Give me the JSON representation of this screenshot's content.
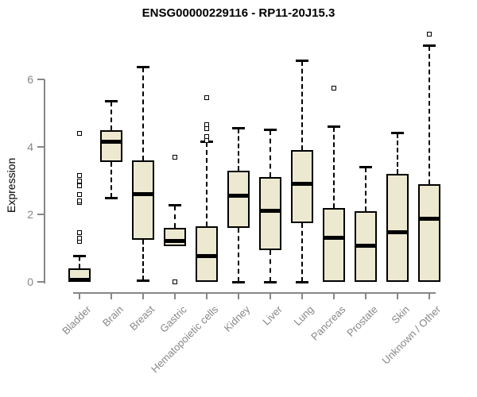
{
  "chart_data": {
    "type": "boxplot",
    "title": "ENSG00000229116 - RP11-20J15.3",
    "ylabel": "Expression",
    "ylim": [
      0,
      7.6
    ],
    "yticks": [
      0,
      2,
      4,
      6
    ],
    "grid": false,
    "legend": null,
    "categories": [
      "Bladder",
      "Brain",
      "Breast",
      "Gastric",
      "Hematopoietic cells",
      "Kidney",
      "Liver",
      "Lung",
      "Pancreas",
      "Prostate",
      "Skin",
      "Unknown / Other"
    ],
    "series": [
      {
        "name": "Bladder",
        "whisker_low": 0,
        "q1": 0,
        "median": 0.05,
        "q3": 0.4,
        "whisker_high": 0.75,
        "outliers": [
          1.2,
          1.3,
          1.45,
          2.35,
          2.4,
          2.6,
          2.85,
          3.0,
          3.15,
          4.4
        ]
      },
      {
        "name": "Brain",
        "whisker_low": 2.5,
        "q1": 3.55,
        "median": 4.15,
        "q3": 4.5,
        "whisker_high": 5.35,
        "outliers": []
      },
      {
        "name": "Breast",
        "whisker_low": 0.05,
        "q1": 1.25,
        "median": 2.6,
        "q3": 3.6,
        "whisker_high": 6.35,
        "outliers": []
      },
      {
        "name": "Gastric",
        "whisker_low": 1.05,
        "q1": 1.05,
        "median": 1.2,
        "q3": 1.6,
        "whisker_high": 2.25,
        "outliers": [
          0.0,
          3.7
        ]
      },
      {
        "name": "Hematopoietic cells",
        "whisker_low": 0,
        "q1": 0,
        "median": 0.75,
        "q3": 1.65,
        "whisker_high": 4.15,
        "outliers": [
          4.2,
          4.3,
          4.55,
          4.65,
          5.45
        ]
      },
      {
        "name": "Kidney",
        "whisker_low": 0,
        "q1": 1.6,
        "median": 2.55,
        "q3": 3.3,
        "whisker_high": 4.55,
        "outliers": []
      },
      {
        "name": "Liver",
        "whisker_low": 0,
        "q1": 0.95,
        "median": 2.1,
        "q3": 3.1,
        "whisker_high": 4.5,
        "outliers": []
      },
      {
        "name": "Lung",
        "whisker_low": 0,
        "q1": 1.75,
        "median": 2.9,
        "q3": 3.9,
        "whisker_high": 6.55,
        "outliers": []
      },
      {
        "name": "Pancreas",
        "whisker_low": 0,
        "q1": 0,
        "median": 1.3,
        "q3": 2.2,
        "whisker_high": 4.6,
        "outliers": [
          5.75
        ]
      },
      {
        "name": "Prostate",
        "whisker_low": 0,
        "q1": 0,
        "median": 1.05,
        "q3": 2.1,
        "whisker_high": 3.4,
        "outliers": []
      },
      {
        "name": "Skin",
        "whisker_low": 0,
        "q1": 0,
        "median": 1.45,
        "q3": 3.2,
        "whisker_high": 4.4,
        "outliers": []
      },
      {
        "name": "Unknown / Other",
        "whisker_low": 0,
        "q1": 0,
        "median": 1.85,
        "q3": 2.9,
        "whisker_high": 7.0,
        "outliers": [
          7.35
        ]
      }
    ],
    "colors": {
      "box_fill": "#EDE8D0",
      "line": "#000000",
      "axis": "#878787",
      "title_color": "#000000"
    }
  }
}
